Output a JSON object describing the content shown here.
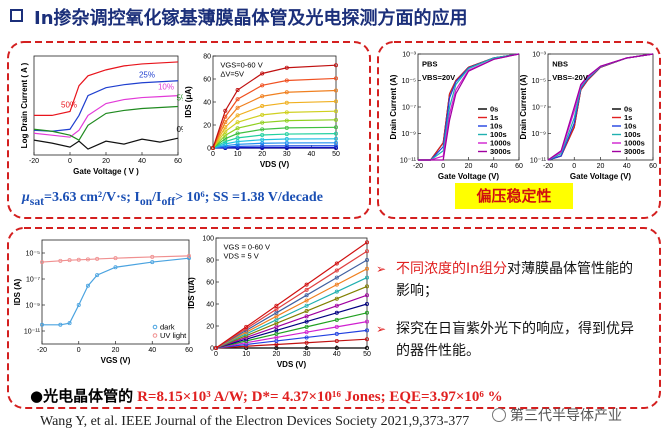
{
  "title": "In掺杂调控氧化镓基薄膜晶体管及光电探测方面的应用",
  "caption": [
    "μ",
    "sat",
    "=3.63 cm²/V·s; I",
    "on",
    "/I",
    "off",
    "> 10⁶; SS =1.38 V/decade"
  ],
  "stability_label": "偏压稳定性",
  "bullets": [
    [
      "不同浓度的In组分",
      "对薄膜晶体管性能的影响；"
    ],
    [
      "探究在日盲紫外光下的响应，得到优异的器件性能。"
    ]
  ],
  "summary": {
    "label": "●光电晶体管的",
    "metrics": "R=8.15×10³ A/W; D*= 4.37×10¹⁶ Jones; EQE=3.97×10⁶ %"
  },
  "citation": "Wang Y, et al. IEEE Journal of the Electron Devices Society 2021,9,373-377",
  "watermark": "第三代半导体产业",
  "chart_data": [
    {
      "type": "line",
      "xlabel": "Gate Voltage ( V )",
      "ylabel": "Log Drain Current ( A )",
      "xlim": [
        -20,
        60
      ],
      "xticks": [
        -20,
        0,
        20,
        40,
        60
      ],
      "ylim": [
        -13,
        -3
      ],
      "x": [
        -20,
        -10,
        0,
        5,
        10,
        20,
        30,
        40,
        50,
        60
      ],
      "series": [
        {
          "name": "50%",
          "color": "#e8141c",
          "values": [
            -9,
            -9,
            -8.6,
            -6,
            -5,
            -4.4,
            -4,
            -3.8,
            -3.7,
            -3.6
          ]
        },
        {
          "name": "25%",
          "color": "#1f3fcf",
          "values": [
            -10.5,
            -10.6,
            -10.4,
            -9,
            -7,
            -6.2,
            -5.9,
            -5.7,
            -5.6,
            -5.5
          ]
        },
        {
          "name": "10%",
          "color": "#e23ad8",
          "values": [
            -10.8,
            -11,
            -11.2,
            -10.5,
            -9,
            -7.8,
            -7.4,
            -7.2,
            -7.1,
            -7
          ]
        },
        {
          "name": "5%",
          "color": "#1f8a1f",
          "values": [
            -10.4,
            -10.6,
            -11,
            -11.5,
            -10,
            -8.8,
            -8.5,
            -8.3,
            -8.2,
            -8.1
          ]
        },
        {
          "name": "0%",
          "color": "#111111",
          "values": [
            -11.5,
            -11.8,
            -12.2,
            -11.6,
            -12.4,
            -11.6,
            -11.9,
            -11.4,
            -11.7,
            -11.3
          ]
        }
      ]
    },
    {
      "type": "line",
      "xlabel": "VDS (V)",
      "ylabel": "IDS (μA)",
      "annotations": [
        "VGS=0-60 V",
        "ΔV=5V"
      ],
      "markers": true,
      "xlim": [
        0,
        50
      ],
      "xticks": [
        0,
        10,
        20,
        30,
        40,
        50
      ],
      "ylim": [
        0,
        80
      ],
      "yticks": [
        0,
        20,
        40,
        60,
        80
      ],
      "x": [
        0,
        5,
        10,
        20,
        30,
        50
      ],
      "series": [
        {
          "color": "#000080",
          "values": [
            0,
            0,
            0,
            0,
            0,
            0
          ]
        },
        {
          "color": "#1010c0",
          "values": [
            0,
            0.2,
            0.4,
            0.5,
            0.5,
            0.5
          ]
        },
        {
          "color": "#2050e0",
          "values": [
            0,
            0.9,
            1.4,
            1.8,
            1.9,
            2
          ]
        },
        {
          "color": "#2090f0",
          "values": [
            0,
            2,
            3.2,
            4.1,
            4.4,
            4.5
          ]
        },
        {
          "color": "#20c0e0",
          "values": [
            0,
            3.6,
            5.6,
            7.2,
            7.8,
            8
          ]
        },
        {
          "color": "#20d0a0",
          "values": [
            0,
            5.6,
            8.8,
            11.3,
            12.1,
            12.5
          ]
        },
        {
          "color": "#40c040",
          "values": [
            0,
            8.1,
            12.6,
            16.2,
            17.5,
            18
          ]
        },
        {
          "color": "#90d020",
          "values": [
            0,
            11,
            17.2,
            22.1,
            23.8,
            24.5
          ]
        },
        {
          "color": "#d0d020",
          "values": [
            0,
            14.4,
            22.4,
            28.8,
            31,
            32
          ]
        },
        {
          "color": "#f0b020",
          "values": [
            0,
            18.2,
            28.4,
            36.5,
            39.3,
            40.5
          ]
        },
        {
          "color": "#f08020",
          "values": [
            0,
            22.5,
            35,
            45,
            48.5,
            50
          ]
        },
        {
          "color": "#f05020",
          "values": [
            0,
            27.2,
            42.4,
            54.5,
            58.7,
            60.5
          ]
        },
        {
          "color": "#c01010",
          "values": [
            0,
            32.4,
            50.4,
            64.8,
            69.8,
            72
          ]
        }
      ]
    },
    {
      "type": "line",
      "log": true,
      "xlabel": "Gate Voltage (V)",
      "ylabel": "Drain Current (A)",
      "annotations": [
        "PBS",
        "VBS=20V"
      ],
      "legend": "lower-right",
      "xlim": [
        -20,
        60
      ],
      "xticks": [
        -20,
        0,
        20,
        40,
        60
      ],
      "ylim": [
        1e-11,
        0.001
      ],
      "yticks": [
        {
          "value": 1e-11,
          "label": "10⁻¹¹"
        },
        {
          "value": 1e-09,
          "label": "10⁻⁹"
        },
        {
          "value": 1e-07,
          "label": "10⁻⁷"
        },
        {
          "value": 1e-05,
          "label": "10⁻⁵"
        },
        {
          "value": 0.001,
          "label": "10⁻³"
        }
      ],
      "x": [
        -20,
        -10,
        0,
        5,
        10,
        20,
        40,
        60
      ],
      "series": [
        {
          "name": "0s",
          "color": "#000000",
          "values": [
            1e-11,
            1e-11,
            2e-10,
            1e-06,
            1e-05,
            0.0001,
            0.0005,
            0.001
          ]
        },
        {
          "name": "1s",
          "color": "#e02020",
          "values": [
            1e-11,
            1e-11,
            2e-10,
            1e-06,
            1e-05,
            0.0001,
            0.0005,
            0.001
          ]
        },
        {
          "name": "10s",
          "color": "#2040e0",
          "values": [
            1e-11,
            1e-11,
            1e-10,
            5e-07,
            8e-06,
            9e-05,
            0.0005,
            0.001
          ]
        },
        {
          "name": "100s",
          "color": "#20b0b0",
          "values": [
            1e-11,
            1e-11,
            5e-11,
            1e-07,
            5e-06,
            8e-05,
            0.0005,
            0.001
          ]
        },
        {
          "name": "1000s",
          "color": "#d020d0",
          "values": [
            1e-11,
            1e-11,
            2e-11,
            3e-08,
            2e-06,
            6e-05,
            0.0004,
            0.001
          ]
        },
        {
          "name": "3000s",
          "color": "#a000a0",
          "values": [
            1e-11,
            1e-11,
            1e-11,
            1e-08,
            1e-06,
            5e-05,
            0.0004,
            0.001
          ]
        }
      ]
    },
    {
      "type": "line",
      "log": true,
      "xlabel": "Gate Voltage (V)",
      "ylabel": "Drain Current (A)",
      "annotations": [
        "NBS",
        "VBS=-20V"
      ],
      "legend": "lower-right",
      "xlim": [
        -20,
        60
      ],
      "xticks": [
        -20,
        0,
        20,
        40,
        60
      ],
      "ylim": [
        1e-11,
        0.001
      ],
      "yticks": [
        {
          "value": 1e-11,
          "label": "10⁻¹¹"
        },
        {
          "value": 1e-09,
          "label": "10⁻⁹"
        },
        {
          "value": 1e-07,
          "label": "10⁻⁷"
        },
        {
          "value": 1e-05,
          "label": "10⁻⁵"
        },
        {
          "value": 0.001,
          "label": "10⁻³"
        }
      ],
      "x": [
        -20,
        -10,
        0,
        5,
        10,
        20,
        40,
        60
      ],
      "series": [
        {
          "name": "0s",
          "color": "#000000",
          "values": [
            1e-11,
            2e-11,
            3e-09,
            2e-06,
            1e-05,
            0.0001,
            0.0005,
            0.001
          ]
        },
        {
          "name": "1s",
          "color": "#e02020",
          "values": [
            1e-11,
            2e-11,
            3e-09,
            2e-06,
            1e-05,
            0.0001,
            0.0005,
            0.001
          ]
        },
        {
          "name": "10s",
          "color": "#2040e0",
          "values": [
            1e-11,
            2e-11,
            6e-09,
            2.5e-06,
            1.2e-05,
            0.000105,
            0.0005,
            0.001
          ]
        },
        {
          "name": "100s",
          "color": "#20b0b0",
          "values": [
            1e-11,
            3e-11,
            1.5e-08,
            3e-06,
            1.4e-05,
            0.00011,
            0.0005,
            0.001
          ]
        },
        {
          "name": "1000s",
          "color": "#d020d0",
          "values": [
            1e-11,
            4e-11,
            5e-08,
            4e-06,
            1.7e-05,
            0.000115,
            0.0005,
            0.001
          ]
        },
        {
          "name": "3000s",
          "color": "#a000a0",
          "values": [
            1e-11,
            5e-11,
            1e-07,
            5e-06,
            2e-05,
            0.00012,
            0.0005,
            0.001
          ]
        }
      ]
    },
    {
      "type": "line",
      "log": true,
      "xlabel": "VGS (V)",
      "ylabel": "IDS (A)",
      "legend": "lower-right",
      "markers": true,
      "xlim": [
        -20,
        60
      ],
      "xticks": [
        -20,
        0,
        20,
        40,
        60
      ],
      "ylim": [
        1e-12,
        0.0001
      ],
      "yticks": [
        {
          "value": 1e-11,
          "label": "10⁻¹¹"
        },
        {
          "value": 1e-09,
          "label": "10⁻⁹"
        },
        {
          "value": 1e-07,
          "label": "10⁻⁷"
        },
        {
          "value": 1e-05,
          "label": "10⁻⁵"
        }
      ],
      "x": [
        -20,
        -10,
        -5,
        0,
        5,
        10,
        20,
        40,
        60
      ],
      "series": [
        {
          "name": "dark",
          "color": "#4aa3e0",
          "values": [
            3e-11,
            3e-11,
            4e-11,
            1e-09,
            3e-08,
            2e-07,
            8e-07,
            2e-06,
            4e-06
          ]
        },
        {
          "name": "UV light",
          "color": "#f09090",
          "values": [
            2e-06,
            2.5e-06,
            2.8e-06,
            3e-06,
            3.2e-06,
            3.5e-06,
            4e-06,
            5e-06,
            6e-06
          ]
        }
      ]
    },
    {
      "type": "line",
      "xlabel": "VDS (V)",
      "ylabel": "IDS (uA)",
      "annotations": [
        "VGS = 0-60 V",
        "VDS = 5 V"
      ],
      "markers": true,
      "xlim": [
        0,
        50
      ],
      "xticks": [
        0,
        10,
        20,
        30,
        40,
        50
      ],
      "ylim": [
        0,
        100
      ],
      "yticks": [
        0,
        20,
        40,
        60,
        80,
        100
      ],
      "x": [
        0,
        10,
        20,
        30,
        40,
        50
      ],
      "series": [
        {
          "color": "#000000",
          "values": [
            0,
            0,
            0,
            0,
            0,
            0
          ]
        },
        {
          "color": "#c01010",
          "values": [
            0,
            1.6,
            3.2,
            4.8,
            6.4,
            8
          ]
        },
        {
          "color": "#2040e0",
          "values": [
            0,
            3.2,
            6.4,
            9.6,
            12.8,
            16
          ]
        },
        {
          "color": "#d020d0",
          "values": [
            0,
            4.8,
            9.6,
            14.4,
            19.2,
            24
          ]
        },
        {
          "color": "#20a020",
          "values": [
            0,
            6.4,
            12.8,
            19.2,
            25.6,
            32
          ]
        },
        {
          "color": "#000080",
          "values": [
            0,
            8,
            16,
            24,
            32,
            40
          ]
        },
        {
          "color": "#a000a0",
          "values": [
            0,
            9.6,
            19.2,
            28.8,
            38.4,
            48
          ]
        },
        {
          "color": "#808000",
          "values": [
            0,
            11.2,
            22.4,
            33.6,
            44.8,
            56
          ]
        },
        {
          "color": "#20b0b0",
          "values": [
            0,
            12.8,
            25.6,
            38.4,
            51.2,
            64
          ]
        },
        {
          "color": "#f08020",
          "values": [
            0,
            14.4,
            28.8,
            43.2,
            57.6,
            72
          ]
        },
        {
          "color": "#4060a0",
          "values": [
            0,
            16,
            32,
            48,
            64,
            80
          ]
        },
        {
          "color": "#e04040",
          "values": [
            0,
            17.6,
            35.2,
            52.8,
            70.4,
            88
          ]
        },
        {
          "color": "#d01010",
          "values": [
            0,
            19.2,
            38.4,
            57.6,
            76.8,
            96
          ]
        }
      ]
    }
  ]
}
